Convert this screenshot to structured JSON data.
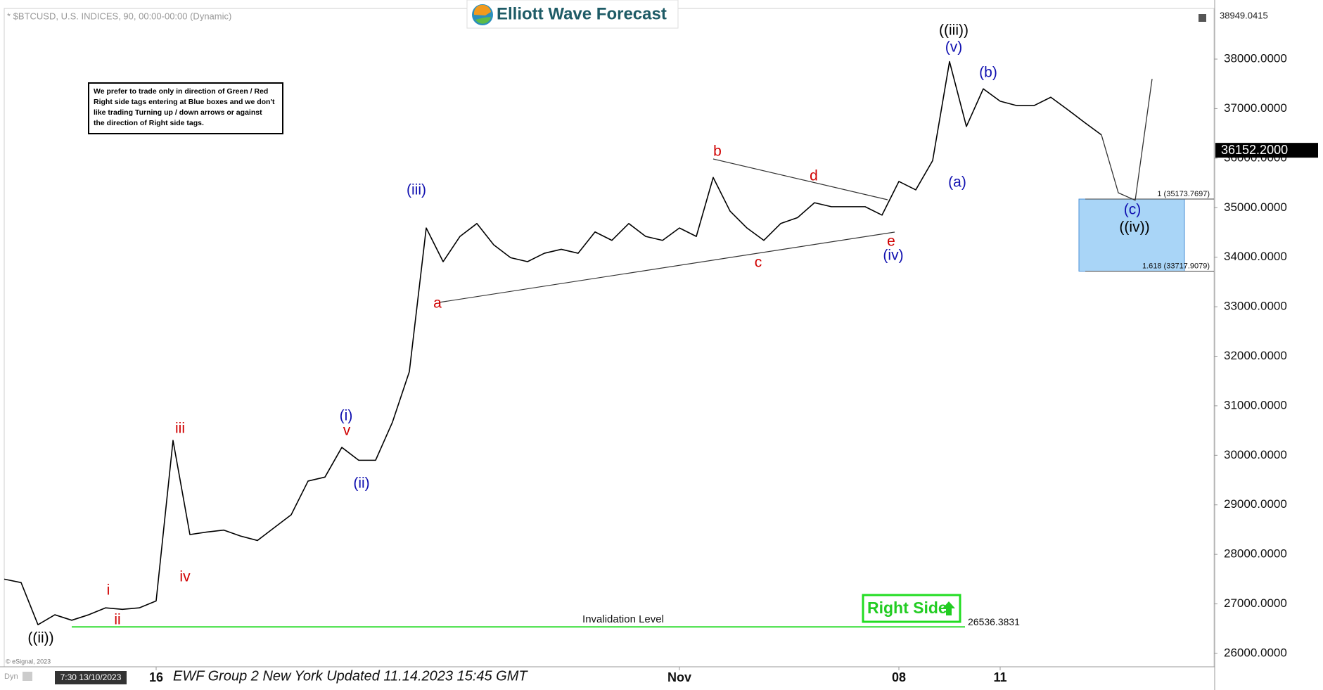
{
  "chart_data": {
    "type": "line",
    "header": "* $BTCUSD, U.S. INDICES, 90, 00:00-00:00 (Dynamic)",
    "logo": "Elliott Wave Forecast",
    "footer": "EWF Group 2 New York Updated 11.14.2023 15:45 GMT",
    "copyright": "© eSignal, 2023",
    "mode": "Dyn",
    "cursor_time": "7:30 13/10/2023",
    "note": [
      "We prefer to trade only in direction of Green / Red",
      "Right side tags entering at Blue boxes and we don't",
      "like trading Turning up / down arrows or against",
      "the direction of Right side tags."
    ],
    "right_side": "Right Side",
    "categories": [
      null,
      null,
      null,
      null,
      null,
      null,
      null,
      null,
      null,
      "16",
      null,
      null,
      null,
      null,
      null,
      null,
      null,
      null,
      null,
      null,
      null,
      null,
      null,
      null,
      null,
      null,
      null,
      null,
      null,
      null,
      null,
      null,
      null,
      null,
      null,
      null,
      null,
      null,
      null,
      null,
      "Nov",
      null,
      null,
      null,
      null,
      null,
      null,
      null,
      null,
      null,
      null,
      null,
      null,
      "08",
      null,
      null,
      null,
      null,
      null,
      "11",
      null,
      null,
      null,
      null,
      null,
      null,
      null,
      null,
      null,
      null,
      null,
      null
    ],
    "series": [
      {
        "color": "#000000",
        "values": [
          27500,
          27430,
          26580,
          26780,
          26670,
          26780,
          26920,
          26890,
          26920,
          27060,
          30300,
          28400,
          28450,
          28490,
          28370,
          28280,
          28540,
          28800,
          29480,
          29560,
          30160,
          29900,
          29900,
          30670,
          31690,
          34590,
          33910,
          34420,
          34680,
          34250,
          33990,
          33910,
          34080,
          34160,
          34080,
          34510,
          34340,
          34680,
          34420,
          34340,
          34590,
          34420,
          35610,
          34930,
          34590,
          34340,
          34680,
          34800,
          35100,
          35020,
          35020,
          35020,
          34850,
          35530,
          35360,
          35950,
          37950,
          36640,
          37400,
          37150,
          37060,
          37060,
          37230,
          36980,
          36720,
          36470,
          null,
          null,
          null,
          null,
          null,
          null
        ]
      },
      {
        "color": "#333333",
        "values": [
          null,
          null,
          null,
          null,
          null,
          null,
          null,
          null,
          null,
          null,
          null,
          null,
          null,
          null,
          null,
          null,
          null,
          null,
          null,
          null,
          null,
          null,
          null,
          null,
          null,
          null,
          null,
          null,
          null,
          null,
          null,
          null,
          null,
          null,
          null,
          null,
          null,
          null,
          null,
          null,
          null,
          null,
          null,
          null,
          null,
          null,
          null,
          null,
          null,
          null,
          null,
          null,
          null,
          null,
          null,
          null,
          null,
          null,
          null,
          null,
          null,
          null,
          null,
          null,
          null,
          36470,
          35300,
          35150,
          37600,
          null,
          null,
          null
        ]
      }
    ],
    "ylim": [
      25730,
      39023
    ],
    "yticks": [
      {
        "value": 26000,
        "label": "26000.0000"
      },
      {
        "value": 27000,
        "label": "27000.0000"
      },
      {
        "value": 28000,
        "label": "28000.0000"
      },
      {
        "value": 29000,
        "label": "29000.0000"
      },
      {
        "value": 30000,
        "label": "30000.0000"
      },
      {
        "value": 31000,
        "label": "31000.0000"
      },
      {
        "value": 32000,
        "label": "32000.0000"
      },
      {
        "value": 33000,
        "label": "33000.0000"
      },
      {
        "value": 34000,
        "label": "34000.0000"
      },
      {
        "value": 35000,
        "label": "35000.0000"
      },
      {
        "value": 36000,
        "label": "36000.0000"
      },
      {
        "value": 37000,
        "label": "37000.0000"
      },
      {
        "value": 38000,
        "label": "38000.0000"
      }
    ],
    "grid": false,
    "top_price": 38949.0415,
    "last_price": {
      "value": 36152.2,
      "label": "36152.2000"
    },
    "invalidation": {
      "value": 26536.3831,
      "title": "Invalidation Level",
      "color": "#33dd33"
    },
    "fib_levels": [
      {
        "value": 35173.7697,
        "label": "1 (35173.7697)"
      },
      {
        "value": 33717.9079,
        "label": "1.618 (33717.9079)"
      }
    ],
    "box_color": "#a9d5f7",
    "annotations": [
      {
        "text": "((ii))",
        "color": "#000000"
      },
      {
        "text": "i",
        "color": "#d00000"
      },
      {
        "text": "ii",
        "color": "#d00000"
      },
      {
        "text": "iii",
        "color": "#d00000"
      },
      {
        "text": "iv",
        "color": "#d00000"
      },
      {
        "text": "(i)",
        "color": "#1010b0"
      },
      {
        "text": "v",
        "color": "#d00000"
      },
      {
        "text": "(ii)",
        "color": "#1010b0"
      },
      {
        "text": "(iii)",
        "color": "#1010b0"
      },
      {
        "text": "a",
        "color": "#d00000"
      },
      {
        "text": "b",
        "color": "#d00000"
      },
      {
        "text": "c",
        "color": "#d00000"
      },
      {
        "text": "d",
        "color": "#d00000"
      },
      {
        "text": "e",
        "color": "#d00000"
      },
      {
        "text": "(iv)",
        "color": "#1010b0"
      },
      {
        "text": "((iii))",
        "color": "#000000"
      },
      {
        "text": "(v)",
        "color": "#1010b0"
      },
      {
        "text": "(b)",
        "color": "#1010b0"
      },
      {
        "text": "(a)",
        "color": "#1010b0"
      },
      {
        "text": "(c)",
        "color": "#1010b0"
      },
      {
        "text": "((iv))",
        "color": "#000000"
      }
    ]
  }
}
